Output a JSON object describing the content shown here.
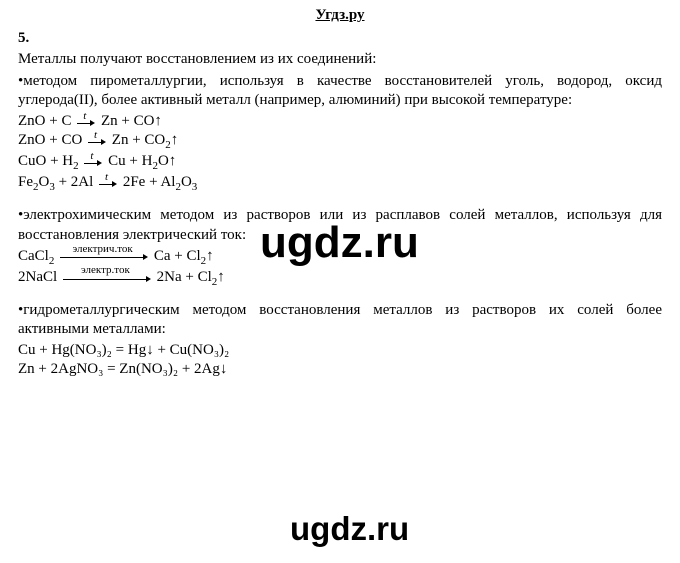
{
  "header": {
    "site": "Угдз.ру"
  },
  "question": {
    "number": "5."
  },
  "intro": "Металлы получают восстановлением из их соединений:",
  "blockA": {
    "bullet": "•методом пирометаллургии, используя в качестве восстановителей уголь, водород, оксид углерода(II), более активный металл (например, алюминий) при высокой температуре:",
    "arrow_top": "t",
    "eq1": {
      "l": "ZnO + C",
      "r": "Zn + CO↑"
    },
    "eq2": {
      "l": "ZnO + CO",
      "r": "Zn + CO",
      "r_sub": "2",
      "tail": "↑"
    },
    "eq3": {
      "l": "CuO + H",
      "l_sub": "2",
      "r": "Cu + H",
      "r_sub": "2",
      "tail": "O↑"
    },
    "eq4": {
      "l1": "Fe",
      "l1s": "2",
      "l2": "O",
      "l2s": "3",
      "l3": " + 2Al",
      "r1": "2Fe + Al",
      "r1s": "2",
      "r2": "O",
      "r2s": "3"
    }
  },
  "blockB": {
    "bullet": "•электрохимическим методом из растворов или из расплавов солей металлов, используя для восстановления электрический ток:",
    "eq1": {
      "l": "CaCl",
      "l_sub": "2",
      "label": "электрич.ток",
      "r": "Ca + Cl",
      "r_sub": "2",
      "tail": "↑"
    },
    "eq2": {
      "l": "2NaCl",
      "label": "электр.ток",
      "r": "2Na + Cl",
      "r_sub": "2",
      "tail": "↑"
    }
  },
  "blockC": {
    "bullet": "•гидрометаллургическим методом восстановления металлов из растворов их солей более активными металлами:",
    "eq1": "Cu + Hg(NO₃)₂ = Hg↓ + Cu(NO₃)₂",
    "eq2": "Zn + 2AgNO₃ = Zn(NO₃)₂ + 2Ag↓"
  },
  "watermarks": {
    "wm1": "ugdz.ru",
    "wm2": "ugdz.ru"
  }
}
